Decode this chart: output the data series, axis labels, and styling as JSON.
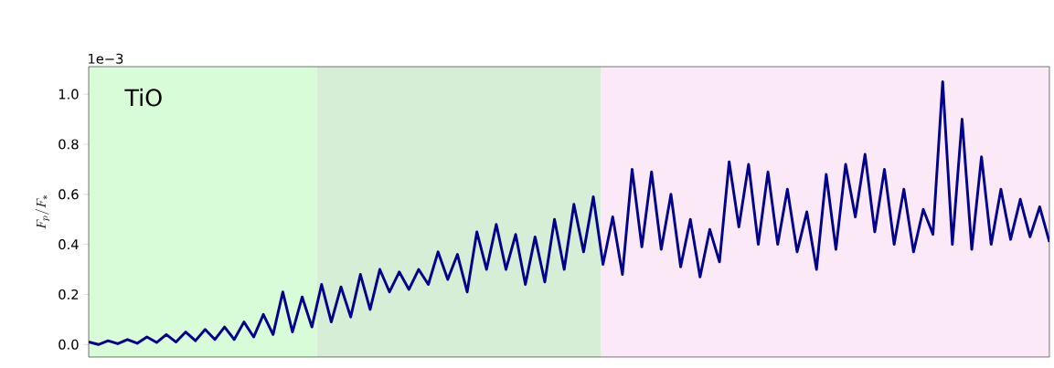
{
  "chart_data": {
    "type": "line",
    "ylabel": "F_p/F_*",
    "annotations": [
      "1e−3",
      "TiO"
    ],
    "tick_labels": "y",
    "ylim": [
      -0.05,
      1.11
    ],
    "yticks": [
      {
        "value": 0,
        "label": "0.0"
      },
      {
        "value": 0.2,
        "label": "0.2"
      },
      {
        "value": 0.4,
        "label": "0.4"
      },
      {
        "value": 0.6,
        "label": "0.6"
      },
      {
        "value": 0.8,
        "label": "0.8"
      },
      {
        "value": 1.0,
        "label": "1.0"
      }
    ],
    "categories": [
      null,
      null,
      null,
      null,
      null,
      null,
      null,
      null,
      null,
      null,
      null,
      null,
      null,
      null,
      null,
      null,
      null,
      null,
      null,
      null,
      null,
      null,
      null,
      null,
      null,
      null,
      null,
      null,
      null,
      null,
      null,
      null,
      null,
      null,
      null,
      null,
      null,
      null,
      null,
      null,
      null,
      null,
      null,
      null,
      null,
      null,
      null,
      null,
      null,
      null,
      null,
      null,
      null,
      null,
      null,
      null,
      null,
      null,
      null,
      null,
      null,
      null,
      null,
      null,
      null,
      null,
      null,
      null,
      null,
      null,
      null,
      null,
      null,
      null,
      null,
      null,
      null,
      null,
      null,
      null,
      null,
      null,
      null,
      null,
      null,
      null,
      null,
      null,
      null,
      null,
      null,
      null,
      null,
      null,
      null,
      null,
      null,
      null,
      null,
      null
    ],
    "series": [
      {
        "color": "#00008b",
        "values": [
          0.01,
          0.0,
          0.015,
          0.003,
          0.02,
          0.005,
          0.03,
          0.008,
          0.04,
          0.01,
          0.05,
          0.015,
          0.06,
          0.02,
          0.07,
          0.02,
          0.09,
          0.03,
          0.12,
          0.04,
          0.21,
          0.05,
          0.19,
          0.07,
          0.24,
          0.09,
          0.23,
          0.11,
          0.28,
          0.14,
          0.3,
          0.21,
          0.29,
          0.22,
          0.3,
          0.24,
          0.37,
          0.26,
          0.36,
          0.21,
          0.45,
          0.3,
          0.48,
          0.3,
          0.44,
          0.24,
          0.43,
          0.25,
          0.5,
          0.3,
          0.56,
          0.37,
          0.59,
          0.32,
          0.51,
          0.28,
          0.7,
          0.39,
          0.69,
          0.38,
          0.6,
          0.31,
          0.5,
          0.27,
          0.46,
          0.33,
          0.73,
          0.47,
          0.72,
          0.4,
          0.69,
          0.4,
          0.62,
          0.37,
          0.53,
          0.3,
          0.68,
          0.38,
          0.72,
          0.51,
          0.76,
          0.45,
          0.7,
          0.4,
          0.62,
          0.37,
          0.54,
          0.44,
          1.05,
          0.4,
          0.9,
          0.38,
          0.75,
          0.4,
          0.62,
          0.42,
          0.58,
          0.43,
          0.55,
          0.41
        ]
      }
    ]
  }
}
